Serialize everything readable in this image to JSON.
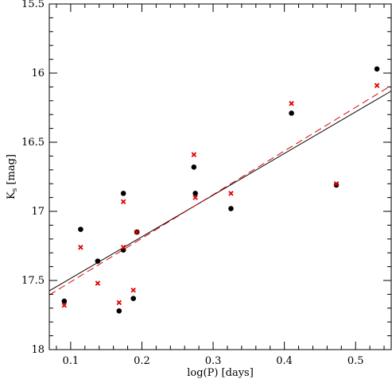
{
  "chart_data": {
    "type": "scatter",
    "title": "",
    "xlabel": "log(P) [days]",
    "ylabel_main": "K",
    "ylabel_sub": "s",
    "ylabel_unit": " [mag]",
    "xlim": [
      0.07,
      0.55
    ],
    "ylim": [
      15.5,
      18
    ],
    "y_inverted": true,
    "grid": false,
    "x_ticks": [
      0.1,
      0.2,
      0.3,
      0.4,
      0.5
    ],
    "x_tick_labels": [
      "0.1",
      "0.2",
      "0.3",
      "0.4",
      "0.5"
    ],
    "y_ticks": [
      15.5,
      16,
      16.5,
      17,
      17.5,
      18
    ],
    "y_tick_labels": [
      "15.5",
      "16",
      "16.5",
      "17",
      "17.5",
      "18"
    ],
    "series": [
      {
        "marker": "circle",
        "color": "#000000",
        "points": [
          [
            0.091,
            17.65
          ],
          [
            0.114,
            17.13
          ],
          [
            0.138,
            17.36
          ],
          [
            0.168,
            17.72
          ],
          [
            0.174,
            16.87
          ],
          [
            0.174,
            17.28
          ],
          [
            0.188,
            17.63
          ],
          [
            0.193,
            17.15
          ],
          [
            0.273,
            16.68
          ],
          [
            0.275,
            16.87
          ],
          [
            0.325,
            16.98
          ],
          [
            0.41,
            16.29
          ],
          [
            0.473,
            16.81
          ],
          [
            0.53,
            15.97
          ]
        ]
      },
      {
        "marker": "cross",
        "color": "#dd0000",
        "points": [
          [
            0.091,
            17.68
          ],
          [
            0.114,
            17.26
          ],
          [
            0.138,
            17.52
          ],
          [
            0.168,
            17.66
          ],
          [
            0.174,
            16.93
          ],
          [
            0.174,
            17.26
          ],
          [
            0.188,
            17.57
          ],
          [
            0.193,
            17.15
          ],
          [
            0.273,
            16.59
          ],
          [
            0.275,
            16.9
          ],
          [
            0.325,
            16.87
          ],
          [
            0.41,
            16.22
          ],
          [
            0.473,
            16.8
          ],
          [
            0.53,
            16.09
          ]
        ]
      }
    ],
    "fit_lines": [
      {
        "style": "solid",
        "color": "#000000",
        "x": [
          0.07,
          0.55
        ],
        "y": [
          17.575,
          16.13
        ]
      },
      {
        "style": "dashed",
        "color": "#dd0000",
        "x": [
          0.07,
          0.55
        ],
        "y": [
          17.605,
          16.09
        ]
      }
    ]
  }
}
